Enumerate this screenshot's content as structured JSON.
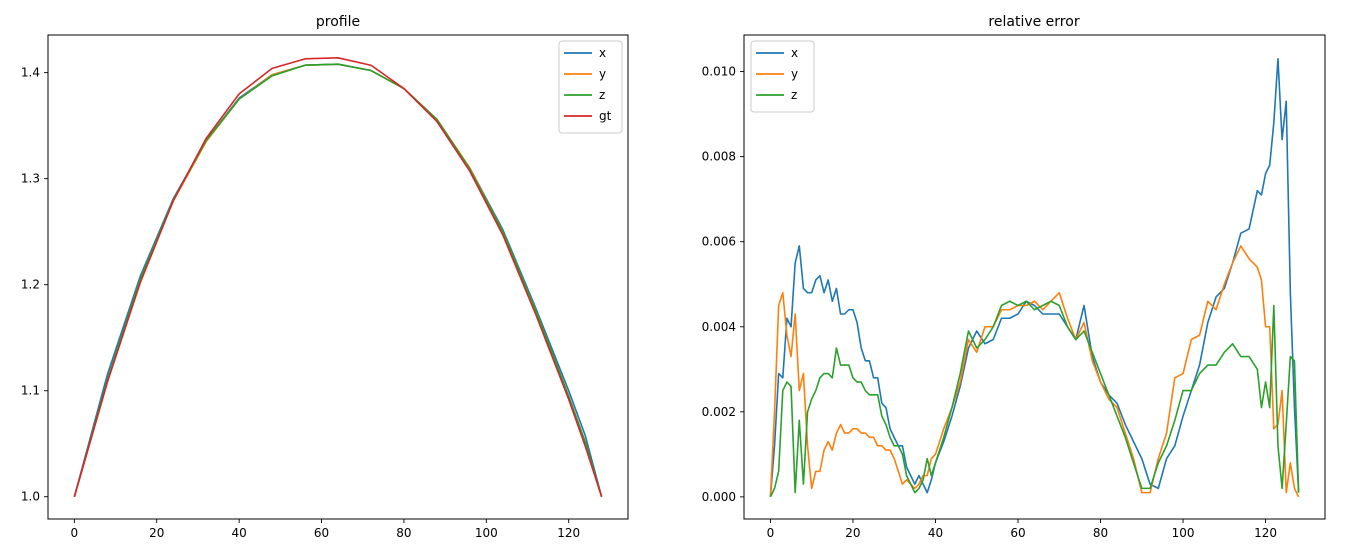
{
  "chart_data": [
    {
      "type": "line",
      "title": "profile",
      "xlabel": "",
      "ylabel": "",
      "xlim": [
        -6.4,
        134.4
      ],
      "ylim": [
        0.979,
        1.4355
      ],
      "xticks": [
        0,
        20,
        40,
        60,
        80,
        100,
        120
      ],
      "xtick_labels": [
        "0",
        "20",
        "40",
        "60",
        "80",
        "100",
        "120"
      ],
      "yticks": [
        1.0,
        1.1,
        1.2,
        1.3,
        1.4
      ],
      "ytick_labels": [
        "1.0",
        "1.1",
        "1.2",
        "1.3",
        "1.4"
      ],
      "grid": false,
      "legend_position": "top-right",
      "series": [
        {
          "name": "x",
          "color": "#1f77b4",
          "x": [
            0,
            8,
            16,
            24,
            32,
            40,
            48,
            56,
            64,
            72,
            80,
            88,
            96,
            104,
            112,
            120,
            124,
            128
          ],
          "y": [
            1.0,
            1.115,
            1.208,
            1.281,
            1.336,
            1.376,
            1.398,
            1.407,
            1.408,
            1.402,
            1.385,
            1.356,
            1.31,
            1.252,
            1.178,
            1.1,
            1.058,
            1.0
          ]
        },
        {
          "name": "y",
          "color": "#ff7f0e",
          "x": [
            0,
            8,
            16,
            24,
            32,
            40,
            48,
            56,
            64,
            72,
            80,
            88,
            96,
            104,
            112,
            120,
            124,
            128
          ],
          "y": [
            1.0,
            1.108,
            1.204,
            1.279,
            1.335,
            1.375,
            1.398,
            1.407,
            1.408,
            1.402,
            1.385,
            1.356,
            1.31,
            1.25,
            1.174,
            1.093,
            1.05,
            1.0
          ]
        },
        {
          "name": "z",
          "color": "#2ca02c",
          "x": [
            0,
            8,
            16,
            24,
            32,
            40,
            48,
            56,
            64,
            72,
            80,
            88,
            96,
            104,
            112,
            120,
            124,
            128
          ],
          "y": [
            1.0,
            1.11,
            1.205,
            1.28,
            1.336,
            1.375,
            1.397,
            1.407,
            1.408,
            1.402,
            1.385,
            1.356,
            1.309,
            1.25,
            1.176,
            1.095,
            1.052,
            1.0
          ]
        },
        {
          "name": "gt",
          "color": "#d62728",
          "x": [
            0,
            8,
            16,
            24,
            32,
            40,
            48,
            56,
            64,
            72,
            80,
            88,
            96,
            104,
            112,
            120,
            124,
            128
          ],
          "y": [
            1.0,
            1.108,
            1.202,
            1.279,
            1.338,
            1.38,
            1.404,
            1.413,
            1.414,
            1.407,
            1.385,
            1.354,
            1.307,
            1.247,
            1.172,
            1.092,
            1.048,
            1.0
          ]
        }
      ]
    },
    {
      "type": "line",
      "title": "relative error",
      "xlabel": "",
      "ylabel": "",
      "xlim": [
        -6.4,
        134.4
      ],
      "ylim": [
        -0.00052,
        0.01086
      ],
      "xticks": [
        0,
        20,
        40,
        60,
        80,
        100,
        120
      ],
      "xtick_labels": [
        "0",
        "20",
        "40",
        "60",
        "80",
        "100",
        "120"
      ],
      "yticks": [
        0.0,
        0.002,
        0.004,
        0.006,
        0.008,
        0.01
      ],
      "ytick_labels": [
        "0.000",
        "0.002",
        "0.004",
        "0.006",
        "0.008",
        "0.010"
      ],
      "grid": false,
      "legend_position": "top-left",
      "series": [
        {
          "name": "x",
          "color": "#1f77b4",
          "x": [
            0,
            1,
            2,
            3,
            4,
            5,
            6,
            7,
            8,
            9,
            10,
            11,
            12,
            13,
            14,
            15,
            16,
            17,
            18,
            19,
            20,
            21,
            22,
            23,
            24,
            25,
            26,
            27,
            28,
            29,
            30,
            31,
            32,
            33,
            34,
            35,
            36,
            37,
            38,
            39,
            40,
            42,
            44,
            46,
            48,
            50,
            52,
            54,
            56,
            58,
            60,
            62,
            64,
            66,
            68,
            70,
            72,
            74,
            76,
            78,
            80,
            82,
            84,
            86,
            88,
            90,
            92,
            94,
            96,
            98,
            100,
            102,
            104,
            106,
            108,
            110,
            112,
            114,
            116,
            118,
            119,
            120,
            121,
            122,
            123,
            124,
            125,
            126,
            127,
            128
          ],
          "y": [
            0.0,
            0.0012,
            0.0029,
            0.0028,
            0.0042,
            0.004,
            0.0055,
            0.0059,
            0.0049,
            0.0048,
            0.0048,
            0.0051,
            0.0052,
            0.0048,
            0.0051,
            0.0046,
            0.0049,
            0.0043,
            0.0043,
            0.0044,
            0.0044,
            0.0041,
            0.0035,
            0.0032,
            0.0032,
            0.0028,
            0.0028,
            0.0022,
            0.0021,
            0.0016,
            0.0014,
            0.0012,
            0.0012,
            0.0007,
            0.0005,
            0.0003,
            0.0005,
            0.0003,
            0.0001,
            0.0004,
            0.0008,
            0.0013,
            0.0019,
            0.0026,
            0.0035,
            0.0039,
            0.0036,
            0.0037,
            0.0042,
            0.0042,
            0.0043,
            0.0046,
            0.0045,
            0.0043,
            0.0043,
            0.0043,
            0.004,
            0.0037,
            0.0045,
            0.0033,
            0.0027,
            0.0024,
            0.0022,
            0.0017,
            0.0013,
            0.0009,
            0.0003,
            0.0002,
            0.0009,
            0.0012,
            0.0019,
            0.0025,
            0.0031,
            0.0041,
            0.0047,
            0.0049,
            0.0055,
            0.0062,
            0.0063,
            0.0072,
            0.0071,
            0.0076,
            0.0078,
            0.0088,
            0.0103,
            0.0084,
            0.0093,
            0.0048,
            0.0021,
            0.0001
          ]
        },
        {
          "name": "y",
          "color": "#ff7f0e",
          "x": [
            0,
            1,
            2,
            3,
            4,
            5,
            6,
            7,
            8,
            9,
            10,
            11,
            12,
            13,
            14,
            15,
            16,
            17,
            18,
            19,
            20,
            21,
            22,
            23,
            24,
            25,
            26,
            27,
            28,
            29,
            30,
            31,
            32,
            33,
            34,
            35,
            36,
            37,
            38,
            39,
            40,
            42,
            44,
            46,
            48,
            50,
            52,
            54,
            56,
            58,
            60,
            62,
            64,
            66,
            68,
            70,
            72,
            74,
            76,
            78,
            80,
            82,
            84,
            86,
            88,
            90,
            92,
            94,
            96,
            98,
            100,
            102,
            104,
            106,
            108,
            110,
            112,
            114,
            116,
            118,
            119,
            120,
            121,
            122,
            123,
            124,
            125,
            126,
            127,
            128
          ],
          "y": [
            0.0,
            0.002,
            0.0045,
            0.0048,
            0.0038,
            0.0033,
            0.0043,
            0.0025,
            0.0029,
            0.0012,
            0.0002,
            0.0006,
            0.0006,
            0.0011,
            0.0013,
            0.0011,
            0.0015,
            0.0017,
            0.0015,
            0.0015,
            0.0016,
            0.0016,
            0.0015,
            0.0015,
            0.0014,
            0.0014,
            0.0012,
            0.0012,
            0.0011,
            0.0011,
            0.0009,
            0.0006,
            0.0003,
            0.0004,
            0.0003,
            0.0002,
            0.0003,
            0.0005,
            0.0005,
            0.0009,
            0.001,
            0.0016,
            0.0021,
            0.0027,
            0.0037,
            0.0034,
            0.004,
            0.004,
            0.0044,
            0.0044,
            0.0045,
            0.0045,
            0.0046,
            0.0044,
            0.0046,
            0.0048,
            0.0042,
            0.0037,
            0.0041,
            0.0032,
            0.0027,
            0.0023,
            0.0021,
            0.0015,
            0.0009,
            0.0001,
            0.0001,
            0.0009,
            0.0015,
            0.0028,
            0.0029,
            0.0037,
            0.0038,
            0.0046,
            0.0044,
            0.005,
            0.0055,
            0.0059,
            0.0056,
            0.0054,
            0.0051,
            0.004,
            0.004,
            0.0016,
            0.0017,
            0.0025,
            0.0001,
            0.0008,
            0.0002,
            0.0
          ]
        },
        {
          "name": "z",
          "color": "#2ca02c",
          "x": [
            0,
            1,
            2,
            3,
            4,
            5,
            6,
            7,
            8,
            9,
            10,
            11,
            12,
            13,
            14,
            15,
            16,
            17,
            18,
            19,
            20,
            21,
            22,
            23,
            24,
            25,
            26,
            27,
            28,
            29,
            30,
            31,
            32,
            33,
            34,
            35,
            36,
            37,
            38,
            39,
            40,
            42,
            44,
            46,
            48,
            50,
            52,
            54,
            56,
            58,
            60,
            62,
            64,
            66,
            68,
            70,
            72,
            74,
            76,
            78,
            80,
            82,
            84,
            86,
            88,
            90,
            92,
            94,
            96,
            98,
            100,
            102,
            104,
            106,
            108,
            110,
            112,
            114,
            116,
            118,
            119,
            120,
            121,
            122,
            123,
            124,
            125,
            126,
            127,
            128
          ],
          "y": [
            0.0,
            0.0002,
            0.0006,
            0.0025,
            0.0027,
            0.0026,
            0.0001,
            0.0018,
            0.0003,
            0.002,
            0.0023,
            0.0025,
            0.0028,
            0.0029,
            0.0029,
            0.0028,
            0.0035,
            0.0031,
            0.0031,
            0.0031,
            0.0028,
            0.0027,
            0.0027,
            0.0025,
            0.0024,
            0.0024,
            0.0024,
            0.0019,
            0.0017,
            0.0014,
            0.0012,
            0.0012,
            0.001,
            0.0005,
            0.0003,
            0.0001,
            0.0002,
            0.0004,
            0.0009,
            0.0005,
            0.0008,
            0.0014,
            0.0021,
            0.0029,
            0.0039,
            0.0035,
            0.0037,
            0.004,
            0.0045,
            0.0046,
            0.0045,
            0.0046,
            0.0044,
            0.0045,
            0.0046,
            0.0045,
            0.004,
            0.0037,
            0.0039,
            0.0034,
            0.0029,
            0.0024,
            0.0019,
            0.0014,
            0.0008,
            0.0002,
            0.0002,
            0.0008,
            0.0012,
            0.0018,
            0.0025,
            0.0025,
            0.0029,
            0.0031,
            0.0031,
            0.0034,
            0.0036,
            0.0033,
            0.0033,
            0.003,
            0.0021,
            0.0027,
            0.0021,
            0.0045,
            0.0012,
            0.0002,
            0.0017,
            0.0033,
            0.0032,
            0.0001
          ]
        }
      ]
    }
  ]
}
